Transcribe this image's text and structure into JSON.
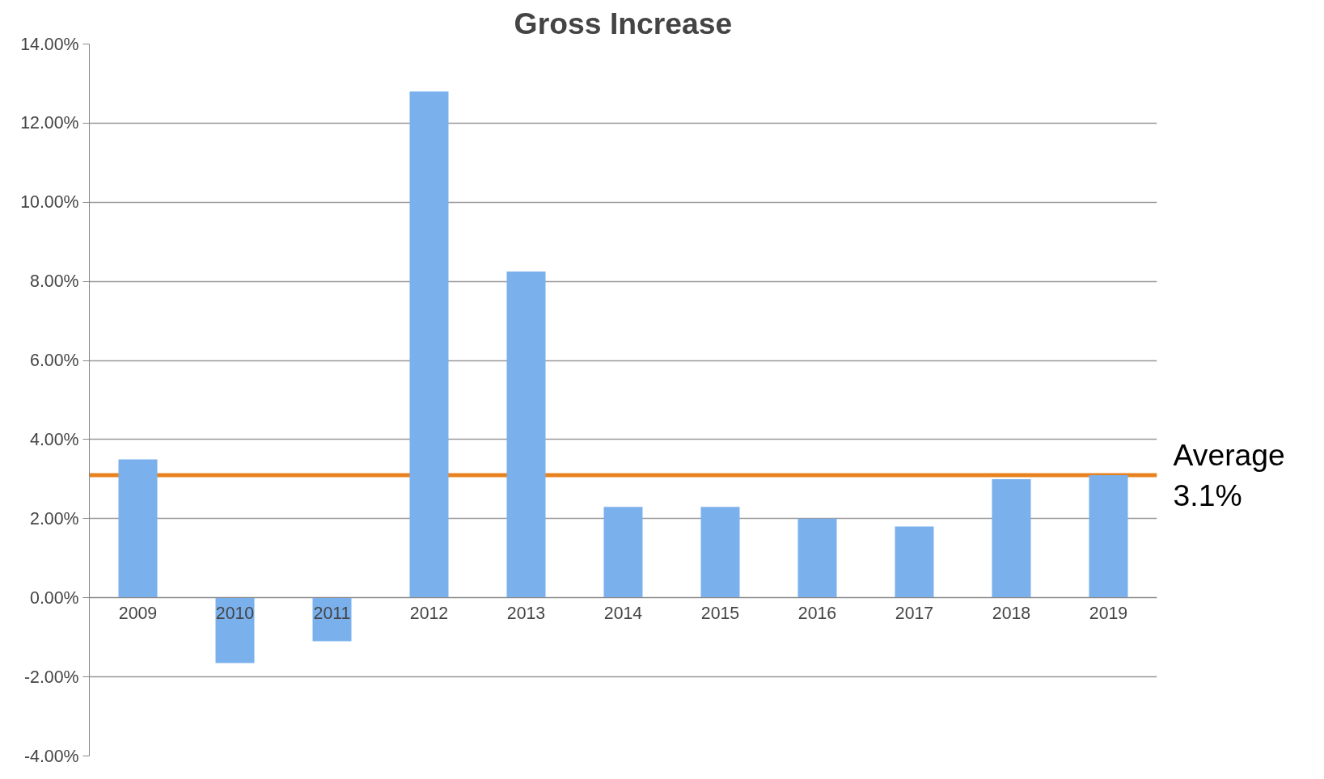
{
  "chart_data": {
    "type": "bar",
    "title": "Gross Increase",
    "categories": [
      "2009",
      "2010",
      "2011",
      "2012",
      "2013",
      "2014",
      "2015",
      "2016",
      "2017",
      "2018",
      "2019"
    ],
    "values": [
      3.5,
      -1.65,
      -1.1,
      12.8,
      8.25,
      2.3,
      2.3,
      2.0,
      1.8,
      3.0,
      3.1
    ],
    "color": "#7ab0ec",
    "ylim": [
      -4,
      14
    ],
    "yticks": [
      {
        "value": -4,
        "label": "-4.00%"
      },
      {
        "value": -2,
        "label": "-2.00%"
      },
      {
        "value": 0,
        "label": "0.00%"
      },
      {
        "value": 2,
        "label": "2.00%"
      },
      {
        "value": 4,
        "label": "4.00%"
      },
      {
        "value": 6,
        "label": "6.00%"
      },
      {
        "value": 8,
        "label": "8.00%"
      },
      {
        "value": 10,
        "label": "10.00%"
      },
      {
        "value": 12,
        "label": "12.00%"
      },
      {
        "value": 14,
        "label": "14.00%"
      }
    ],
    "grid": "y",
    "ref_lines": [
      {
        "axis": "y",
        "value": 3.1,
        "label": "Average\n3.1%",
        "color": "#e8821e",
        "line_style": "solid"
      }
    ]
  }
}
